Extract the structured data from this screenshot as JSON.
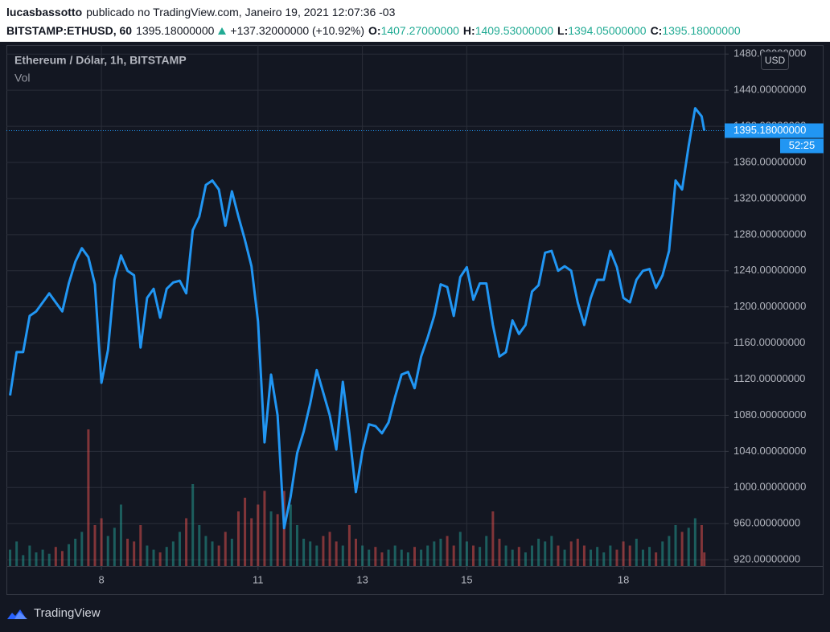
{
  "header": {
    "user": "lucasbassotto",
    "published": "publicado no TradingView.com, Janeiro 19, 2021 12:07:36 -03",
    "symbol": "BITSTAMP:ETHUSD, 60",
    "last": "1395.18000000",
    "change": "+137.32000000 (+10.92%)",
    "ohlc": [
      {
        "label": "O:",
        "value": "1407.27000000"
      },
      {
        "label": "H:",
        "value": "1409.53000000"
      },
      {
        "label": "L:",
        "value": "1394.05000000"
      },
      {
        "label": "C:",
        "value": "1395.18000000"
      }
    ]
  },
  "chart_data": {
    "type": "line",
    "title": "Ethereum / Dólar, 1h, BITSTAMP",
    "volume_label": "Vol",
    "currency": "USD",
    "countdown": "52:25",
    "color": "#2196f3",
    "grid": true,
    "volume_colors": {
      "up": "#26a69a",
      "down": "#ef5350"
    },
    "x": [
      6.25,
      6.375,
      6.5,
      6.625,
      6.75,
      6.875,
      7,
      7.125,
      7.25,
      7.375,
      7.5,
      7.625,
      7.75,
      7.875,
      8,
      8.125,
      8.25,
      8.375,
      8.5,
      8.625,
      8.75,
      8.875,
      9,
      9.125,
      9.25,
      9.375,
      9.5,
      9.625,
      9.75,
      9.875,
      10,
      10.125,
      10.25,
      10.375,
      10.5,
      10.625,
      10.75,
      10.875,
      11,
      11.125,
      11.25,
      11.375,
      11.5,
      11.625,
      11.75,
      11.875,
      12,
      12.125,
      12.25,
      12.375,
      12.5,
      12.625,
      12.75,
      12.875,
      13,
      13.125,
      13.25,
      13.375,
      13.5,
      13.625,
      13.75,
      13.875,
      14,
      14.125,
      14.25,
      14.375,
      14.5,
      14.625,
      14.75,
      14.875,
      15,
      15.125,
      15.25,
      15.375,
      15.5,
      15.625,
      15.75,
      15.875,
      16,
      16.125,
      16.25,
      16.375,
      16.5,
      16.625,
      16.75,
      16.875,
      17,
      17.125,
      17.25,
      17.375,
      17.5,
      17.625,
      17.75,
      17.875,
      18,
      18.125,
      18.25,
      18.375,
      18.5,
      18.625,
      18.75,
      18.875,
      19,
      19.125,
      19.25,
      19.375,
      19.5,
      19.55
    ],
    "values": [
      1102,
      1150,
      1150,
      1190,
      1195,
      1205,
      1215,
      1205,
      1195,
      1226,
      1250,
      1265,
      1255,
      1225,
      1116,
      1152,
      1230,
      1257,
      1240,
      1235,
      1155,
      1210,
      1220,
      1188,
      1220,
      1227,
      1229,
      1215,
      1285,
      1300,
      1335,
      1340,
      1330,
      1290,
      1328,
      1300,
      1274,
      1245,
      1184,
      1050,
      1125,
      1080,
      955,
      990,
      1038,
      1062,
      1093,
      1130,
      1105,
      1080,
      1042,
      1117,
      1060,
      995,
      1040,
      1070,
      1068,
      1060,
      1072,
      1100,
      1125,
      1128,
      1110,
      1145,
      1166,
      1190,
      1225,
      1222,
      1190,
      1233,
      1244,
      1208,
      1226,
      1226,
      1180,
      1145,
      1150,
      1185,
      1170,
      1180,
      1217,
      1224,
      1260,
      1262,
      1240,
      1245,
      1240,
      1205,
      1180,
      1210,
      1230,
      1230,
      1262,
      1244,
      1210,
      1205,
      1230,
      1240,
      1242,
      1221,
      1235,
      1262,
      1340,
      1330,
      1378,
      1420,
      1411,
      1395.18
    ],
    "volume": [
      12,
      18,
      8,
      15,
      10,
      12,
      9,
      14,
      11,
      16,
      20,
      25,
      100,
      30,
      35,
      22,
      28,
      45,
      20,
      18,
      30,
      15,
      12,
      10,
      14,
      18,
      25,
      35,
      60,
      30,
      22,
      18,
      15,
      25,
      20,
      40,
      50,
      35,
      45,
      55,
      40,
      38,
      55,
      45,
      30,
      20,
      18,
      15,
      22,
      25,
      18,
      15,
      30,
      20,
      15,
      12,
      14,
      10,
      12,
      15,
      12,
      10,
      14,
      12,
      15,
      18,
      20,
      22,
      15,
      25,
      18,
      15,
      14,
      22,
      40,
      20,
      15,
      12,
      14,
      10,
      15,
      20,
      18,
      22,
      15,
      12,
      18,
      20,
      15,
      12,
      14,
      10,
      15,
      12,
      18,
      15,
      20,
      12,
      14,
      10,
      18,
      22,
      30,
      25,
      28,
      35,
      30,
      10
    ],
    "vlim": [
      0,
      100
    ],
    "xlim": [
      6.18,
      19.94
    ],
    "xticks": [
      8,
      11,
      13,
      15,
      18
    ],
    "ylim": [
      913,
      1490
    ],
    "yticks": [
      {
        "value": 920,
        "label": "920.00000000"
      },
      {
        "value": 960,
        "label": "960.00000000"
      },
      {
        "value": 1000,
        "label": "1000.00000000"
      },
      {
        "value": 1040,
        "label": "1040.00000000"
      },
      {
        "value": 1080,
        "label": "1080.00000000"
      },
      {
        "value": 1120,
        "label": "1120.00000000"
      },
      {
        "value": 1160,
        "label": "1160.00000000"
      },
      {
        "value": 1200,
        "label": "1200.00000000"
      },
      {
        "value": 1240,
        "label": "1240.00000000"
      },
      {
        "value": 1280,
        "label": "1280.00000000"
      },
      {
        "value": 1320,
        "label": "1320.00000000"
      },
      {
        "value": 1360,
        "label": "1360.00000000"
      },
      {
        "value": 1400,
        "label": "1400.00000000"
      },
      {
        "value": 1440,
        "label": "1440.00000000"
      },
      {
        "value": 1480,
        "label": "1480.00000000"
      }
    ]
  },
  "footer": {
    "brand": "TradingView"
  }
}
